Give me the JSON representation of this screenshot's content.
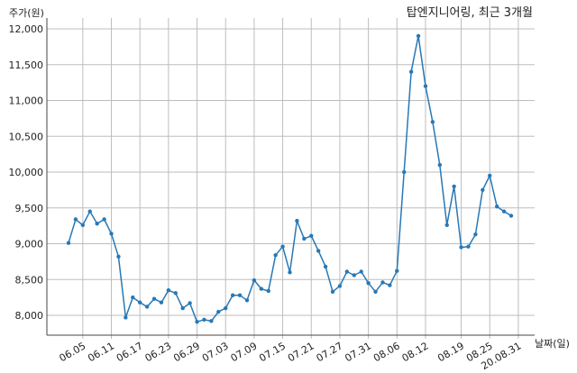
{
  "chart_data": {
    "type": "line",
    "title": "탑엔지니어링, 최근 3개월",
    "ylabel": "주가(원)",
    "xlabel": "날짜(일)",
    "ylim": [
      7700,
      12100
    ],
    "yticks": [
      8000,
      8500,
      9000,
      9500,
      10000,
      10500,
      11000,
      11500,
      12000
    ],
    "ytick_labels": [
      "8,000",
      "8,500",
      "9,000",
      "9,500",
      "10,000",
      "10,500",
      "11,000",
      "11,500",
      "12,000"
    ],
    "xtick_labels": [
      "06.05",
      "06.11",
      "06.17",
      "06.23",
      "06.29",
      "07.03",
      "07.09",
      "07.15",
      "07.21",
      "07.27",
      "07.31",
      "08.06",
      "08.12",
      "08.19",
      "08.25",
      "20.08.31"
    ],
    "xtick_index": [
      2,
      6,
      10,
      14,
      18,
      22,
      26,
      30,
      34,
      38,
      42,
      46,
      50,
      55,
      59,
      63
    ],
    "grid": true,
    "color": "#2878b5",
    "series": [
      {
        "values": [
          9010,
          9340,
          9260,
          9450,
          9280,
          9340,
          9140,
          8820,
          7970,
          8250,
          8180,
          8120,
          8230,
          8180,
          8350,
          8310,
          8100,
          8170,
          7910,
          7940,
          7920,
          8050,
          8100,
          8280,
          8280,
          8210,
          8490,
          8370,
          8340,
          8840,
          8960,
          8600,
          9320,
          9070,
          9110,
          8900,
          8680,
          8330,
          8410,
          8610,
          8560,
          8610,
          8450,
          8330,
          8460,
          8420,
          8620,
          10000,
          11400,
          11900,
          11200,
          10700,
          10100,
          9260,
          9800,
          8950,
          8960,
          9130,
          9750,
          9950,
          9520,
          9450,
          9390
        ]
      }
    ]
  }
}
